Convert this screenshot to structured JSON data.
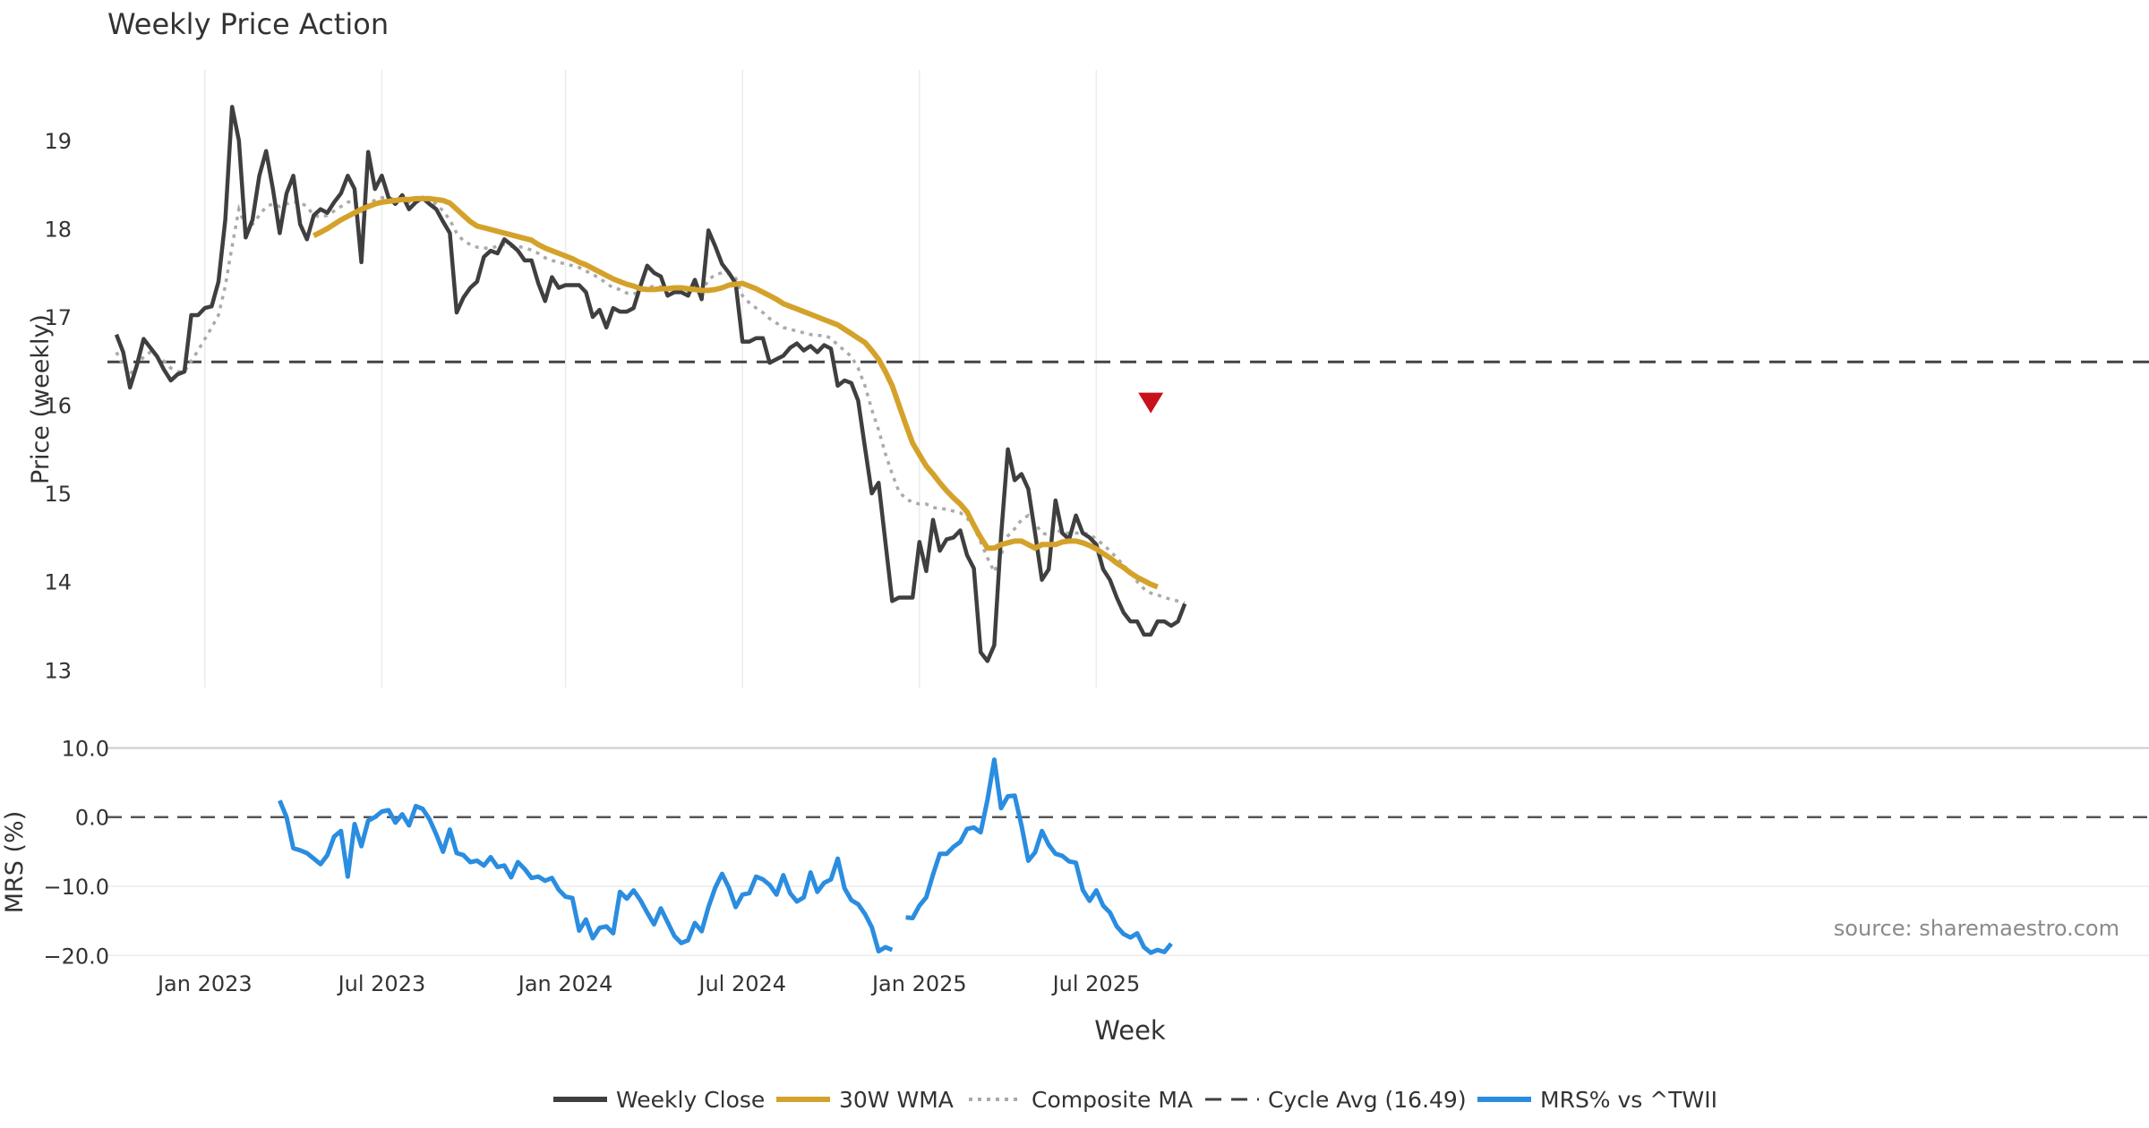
{
  "chart_data": {
    "type": "line",
    "title": "Weekly Price Action",
    "xlabel": "Week",
    "source": "source: sharemaestro.com",
    "x_tick_labels": [
      "Jan 2023",
      "Jul 2023",
      "Jan 2024",
      "Jul 2024",
      "Jan 2025",
      "Jul 2025"
    ],
    "price_panel": {
      "ylabel": "Price (weekly)",
      "ylim": [
        12.8,
        19.8
      ],
      "y_ticks": [
        "13",
        "14",
        "15",
        "16",
        "17",
        "18",
        "19"
      ],
      "cycle_avg": 16.49,
      "sell_signal": {
        "week": 152,
        "value": 16.03
      },
      "series": [
        {
          "name": "Weekly Close",
          "color": "#3f3f3f",
          "style": "solid",
          "start": 0,
          "values": [
            16.8,
            16.6,
            16.2,
            16.45,
            16.75,
            16.65,
            16.55,
            16.4,
            16.28,
            16.35,
            16.38,
            17.02,
            17.02,
            17.1,
            17.12,
            17.4,
            18.1,
            19.38,
            19.0,
            17.9,
            18.1,
            18.6,
            18.88,
            18.45,
            17.95,
            18.4,
            18.6,
            18.05,
            17.88,
            18.15,
            18.22,
            18.18,
            18.3,
            18.4,
            18.6,
            18.45,
            17.62,
            18.87,
            18.45,
            18.6,
            18.35,
            18.28,
            18.38,
            18.22,
            18.3,
            18.35,
            18.28,
            18.22,
            18.08,
            17.95,
            17.05,
            17.22,
            17.33,
            17.4,
            17.68,
            17.75,
            17.72,
            17.88,
            17.82,
            17.75,
            17.64,
            17.64,
            17.38,
            17.18,
            17.45,
            17.33,
            17.36,
            17.36,
            17.36,
            17.28,
            17.0,
            17.08,
            16.88,
            17.1,
            17.06,
            17.06,
            17.1,
            17.35,
            17.58,
            17.5,
            17.46,
            17.24,
            17.28,
            17.28,
            17.24,
            17.42,
            17.2,
            17.98,
            17.8,
            17.6,
            17.5,
            17.38,
            16.72,
            16.72,
            16.76,
            16.76,
            16.48,
            16.52,
            16.56,
            16.65,
            16.7,
            16.62,
            16.67,
            16.6,
            16.68,
            16.64,
            16.22,
            16.28,
            16.25,
            16.05,
            15.52,
            15.0,
            15.12,
            14.45,
            13.78,
            13.82,
            13.82,
            13.82,
            14.45,
            14.12,
            14.7,
            14.35,
            14.48,
            14.5,
            14.58,
            14.3,
            14.15,
            13.2,
            13.1,
            13.28,
            14.52,
            15.5,
            15.15,
            15.22,
            15.05,
            14.55,
            14.02,
            14.14,
            14.92,
            14.55,
            14.48,
            14.75,
            14.55,
            14.5,
            14.42,
            14.14,
            14.02,
            13.82,
            13.65,
            13.55,
            13.55,
            13.4,
            13.4,
            13.55,
            13.55,
            13.5,
            13.55,
            13.75
          ]
        },
        {
          "name": "30W WMA",
          "color": "#d4a22b",
          "style": "solid",
          "start": 29,
          "values": [
            17.92,
            17.96,
            18.0,
            18.05,
            18.1,
            18.14,
            18.18,
            18.22,
            18.25,
            18.28,
            18.3,
            18.31,
            18.32,
            18.33,
            18.33,
            18.34,
            18.34,
            18.34,
            18.33,
            18.32,
            18.29,
            18.22,
            18.15,
            18.08,
            18.03,
            18.01,
            17.99,
            17.97,
            17.95,
            17.93,
            17.91,
            17.89,
            17.87,
            17.82,
            17.78,
            17.75,
            17.72,
            17.69,
            17.66,
            17.62,
            17.59,
            17.55,
            17.51,
            17.47,
            17.43,
            17.4,
            17.37,
            17.35,
            17.32,
            17.31,
            17.31,
            17.32,
            17.32,
            17.33,
            17.33,
            17.32,
            17.31,
            17.3,
            17.3,
            17.31,
            17.33,
            17.36,
            17.37,
            17.38,
            17.35,
            17.32,
            17.28,
            17.24,
            17.2,
            17.15,
            17.12,
            17.09,
            17.06,
            17.03,
            17.0,
            16.97,
            16.94,
            16.91,
            16.86,
            16.81,
            16.76,
            16.71,
            16.62,
            16.52,
            16.38,
            16.22,
            16.0,
            15.78,
            15.57,
            15.44,
            15.31,
            15.22,
            15.12,
            15.03,
            14.95,
            14.88,
            14.79,
            14.64,
            14.5,
            14.38,
            14.38,
            14.42,
            14.44,
            14.46,
            14.46,
            14.42,
            14.38,
            14.42,
            14.42,
            14.42,
            14.45,
            14.46,
            14.46,
            14.44,
            14.41,
            14.37,
            14.32,
            14.27,
            14.21,
            14.16,
            14.1,
            14.05,
            14.01,
            13.97,
            13.94
          ]
        },
        {
          "name": "Composite MA",
          "color": "#aaaaaa",
          "style": "dotted",
          "start": 0,
          "values": [
            16.6,
            16.45,
            16.35,
            16.45,
            16.55,
            16.6,
            16.55,
            16.5,
            16.42,
            16.38,
            16.38,
            16.5,
            16.62,
            16.75,
            16.88,
            17.02,
            17.35,
            17.8,
            18.22,
            18.02,
            18.05,
            18.15,
            18.25,
            18.28,
            18.25,
            18.28,
            18.3,
            18.3,
            18.25,
            18.15,
            18.13,
            18.15,
            18.2,
            18.25,
            18.3,
            18.32,
            18.2,
            18.3,
            18.32,
            18.35,
            18.35,
            18.33,
            18.33,
            18.3,
            18.32,
            18.32,
            18.3,
            18.28,
            18.2,
            18.1,
            17.95,
            17.86,
            17.82,
            17.79,
            17.78,
            17.78,
            17.8,
            17.82,
            17.8,
            17.8,
            17.78,
            17.76,
            17.72,
            17.67,
            17.64,
            17.62,
            17.6,
            17.58,
            17.56,
            17.52,
            17.48,
            17.44,
            17.38,
            17.33,
            17.31,
            17.27,
            17.26,
            17.29,
            17.33,
            17.35,
            17.34,
            17.32,
            17.32,
            17.31,
            17.3,
            17.34,
            17.28,
            17.42,
            17.48,
            17.5,
            17.49,
            17.44,
            17.24,
            17.16,
            17.1,
            17.05,
            16.98,
            16.93,
            16.88,
            16.86,
            16.84,
            16.82,
            16.8,
            16.79,
            16.79,
            16.76,
            16.68,
            16.62,
            16.55,
            16.42,
            16.22,
            15.95,
            15.72,
            15.45,
            15.22,
            15.02,
            14.94,
            14.9,
            14.88,
            14.88,
            14.84,
            14.83,
            14.82,
            14.8,
            14.78,
            14.72,
            14.62,
            14.45,
            14.27,
            14.11,
            14.3,
            14.52,
            14.6,
            14.7,
            14.75,
            14.66,
            14.55,
            14.53,
            14.6,
            14.55,
            14.55,
            14.55,
            14.55,
            14.54,
            14.48,
            14.42,
            14.35,
            14.27,
            14.19,
            14.1,
            14.0,
            13.92,
            13.87,
            13.85,
            13.82,
            13.8,
            13.78,
            13.76
          ]
        }
      ]
    },
    "mrs_panel": {
      "ylabel": "MRS (%)",
      "ylim": [
        -21,
        12
      ],
      "y_ticks": [
        "10.0",
        "0.0",
        "−10.0",
        "−20.0"
      ],
      "zero_line": 0,
      "series": [
        {
          "name": "MRS% vs ^TWII",
          "color": "#2a8de0",
          "start": 24,
          "values": [
            2.4,
            0,
            -4.5,
            -4.8,
            -5.2,
            -6,
            -6.8,
            -5.5,
            -2.8,
            -2,
            -8.6,
            -1,
            -4.2,
            -0.5,
            0,
            0.8,
            1.0,
            -0.8,
            0.4,
            -1.2,
            1.6,
            1.2,
            -0.3,
            -2.5,
            -5,
            -1.8,
            -5.2,
            -5.5,
            -6.5,
            -6.3,
            -7,
            -5.8,
            -7.2,
            -7,
            -8.7,
            -6.5,
            -7.5,
            -8.8,
            -8.6,
            -9.2,
            -8.8,
            -10.5,
            -11.5,
            -11.7,
            -16.4,
            -14.8,
            -17.5,
            -16,
            -15.8,
            -16.8,
            -10.8,
            -11.8,
            -10.6,
            -12,
            -13.8,
            -15.5,
            -13.2,
            -15.2,
            -17.2,
            -18.2,
            -17.8,
            -15.3,
            -16.5,
            -13,
            -10.2,
            -8.2,
            -10.2,
            -13,
            -11.2,
            -11,
            -8.6,
            -9,
            -9.8,
            -11.2,
            -8.4,
            -11,
            -12.2,
            -11.6,
            -8,
            -10.8,
            -9.5,
            -9,
            -6,
            -10.3,
            -12,
            -12.6,
            -14,
            -15.9,
            -19.4,
            -18.8,
            -19.2,
            null,
            -14.5,
            -14.6,
            -12.8,
            -11.6,
            -8.3,
            -5.3,
            -5.3,
            -4.3,
            -3.6,
            -1.7,
            -1.5,
            -2.2,
            2.5,
            8.3,
            1.3,
            3,
            3.1,
            -1.2,
            -6.3,
            -5.1,
            -2,
            -4,
            -5.3,
            -5.6,
            -6.4,
            -6.6,
            -10.5,
            -12.1,
            -10.6,
            -12.8,
            -13.8,
            -15.8,
            -16.9,
            -17.4,
            -16.8,
            -18.8,
            -19.6,
            -19.2,
            -19.5,
            -18.3
          ]
        }
      ]
    },
    "legend": {
      "position": "bottom-center",
      "items": [
        {
          "label": "Weekly Close",
          "color": "#3f3f3f",
          "style": "solid"
        },
        {
          "label": "30W WMA",
          "color": "#d4a22b",
          "style": "solid"
        },
        {
          "label": "Composite MA",
          "color": "#aaaaaa",
          "style": "dotted"
        },
        {
          "label": "Cycle Avg (16.49)",
          "color": "#3f3f3f",
          "style": "dashed"
        },
        {
          "label": "MRS% vs ^TWII",
          "color": "#2a8de0",
          "style": "solid"
        }
      ]
    }
  }
}
